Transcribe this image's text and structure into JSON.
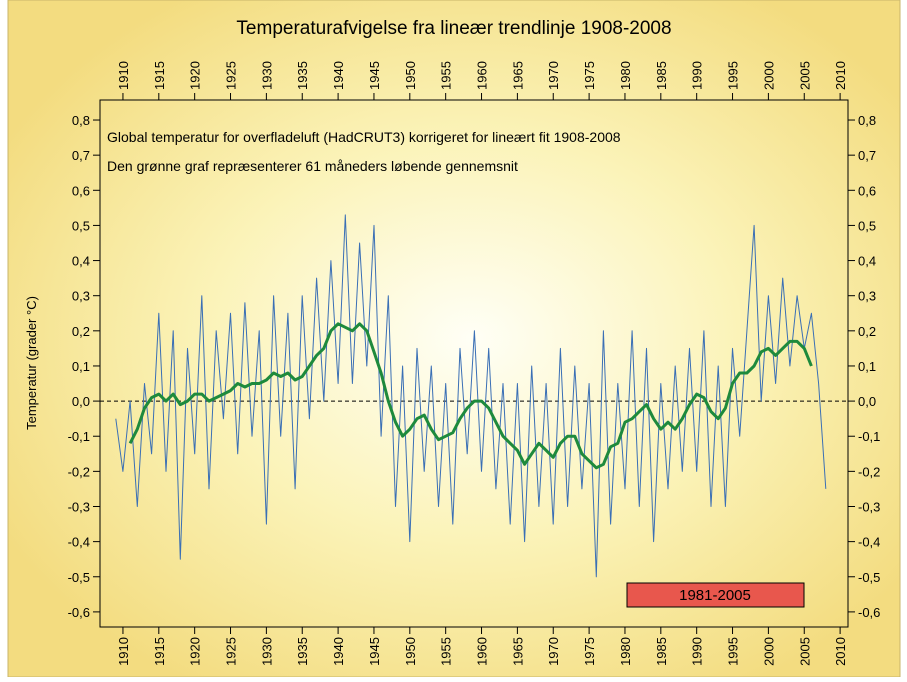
{
  "chart_data": {
    "type": "line",
    "title": "Temperaturafvigelse fra lineær trendlinje 1908-2008",
    "annotations": [
      "Global temperatur for overfladeluft (HadCRUT3) korrigeret for lineært fit 1908-2008",
      "Den grønne graf repræsenterer 61 måneders løbende gennemsnit",
      "1981-2005"
    ],
    "y_label": "Temperatur (grader °C)",
    "xlim": [
      1906.8,
      2011.1
    ],
    "ylim": [
      -0.643,
      0.857
    ],
    "xticks": [
      1910,
      1915,
      1920,
      1925,
      1930,
      1935,
      1940,
      1945,
      1950,
      1955,
      1960,
      1965,
      1970,
      1975,
      1980,
      1985,
      1990,
      1995,
      2000,
      2005,
      2010
    ],
    "yticks": [
      {
        "value": -0.6,
        "label": "-0,6"
      },
      {
        "value": -0.5,
        "label": "-0,5"
      },
      {
        "value": -0.4,
        "label": "-0,4"
      },
      {
        "value": -0.3,
        "label": "-0,3"
      },
      {
        "value": -0.2,
        "label": "-0,2"
      },
      {
        "value": -0.1,
        "label": "-0,1"
      },
      {
        "value": 0,
        "label": "0,0"
      },
      {
        "value": 0.1,
        "label": "0,1"
      },
      {
        "value": 0.2,
        "label": "0,2"
      },
      {
        "value": 0.3,
        "label": "0,3"
      },
      {
        "value": 0.4,
        "label": "0,4"
      },
      {
        "value": 0.5,
        "label": "0,5"
      },
      {
        "value": 0.6,
        "label": "0,6"
      },
      {
        "value": 0.7,
        "label": "0,7"
      },
      {
        "value": 0.8,
        "label": "0,8"
      }
    ],
    "series": [
      {
        "color": "#3a6fb5",
        "width": 1,
        "x": [
          1909,
          1910,
          1911,
          1912,
          1913,
          1914,
          1915,
          1916,
          1917,
          1918,
          1919,
          1920,
          1921,
          1922,
          1923,
          1924,
          1925,
          1926,
          1927,
          1928,
          1929,
          1930,
          1931,
          1932,
          1933,
          1934,
          1935,
          1936,
          1937,
          1938,
          1939,
          1940,
          1941,
          1942,
          1943,
          1944,
          1945,
          1946,
          1947,
          1948,
          1949,
          1950,
          1951,
          1952,
          1953,
          1954,
          1955,
          1956,
          1957,
          1958,
          1959,
          1960,
          1961,
          1962,
          1963,
          1964,
          1965,
          1966,
          1967,
          1968,
          1969,
          1970,
          1971,
          1972,
          1973,
          1974,
          1975,
          1976,
          1977,
          1978,
          1979,
          1980,
          1981,
          1982,
          1983,
          1984,
          1985,
          1986,
          1987,
          1988,
          1989,
          1990,
          1991,
          1992,
          1993,
          1994,
          1995,
          1996,
          1997,
          1998,
          1999,
          2000,
          2001,
          2002,
          2003,
          2004,
          2005,
          2006,
          2007,
          2008
        ],
        "values": [
          -0.05,
          -0.2,
          0.0,
          -0.3,
          0.05,
          -0.15,
          0.25,
          -0.2,
          0.2,
          -0.45,
          0.15,
          -0.15,
          0.3,
          -0.25,
          0.2,
          -0.05,
          0.25,
          -0.15,
          0.28,
          -0.1,
          0.2,
          -0.35,
          0.3,
          -0.1,
          0.25,
          -0.25,
          0.3,
          -0.05,
          0.35,
          0.0,
          0.4,
          0.05,
          0.53,
          0.05,
          0.45,
          0.1,
          0.5,
          -0.1,
          0.3,
          -0.3,
          0.1,
          -0.4,
          0.15,
          -0.2,
          0.1,
          -0.3,
          0.05,
          -0.35,
          0.15,
          -0.15,
          0.2,
          -0.2,
          0.15,
          -0.25,
          0.05,
          -0.35,
          0.05,
          -0.4,
          0.1,
          -0.3,
          0.05,
          -0.35,
          0.15,
          -0.3,
          0.1,
          -0.25,
          0.05,
          -0.5,
          0.2,
          -0.35,
          0.05,
          -0.25,
          0.2,
          -0.3,
          0.15,
          -0.4,
          0.05,
          -0.25,
          0.1,
          -0.2,
          0.15,
          -0.2,
          0.2,
          -0.3,
          0.1,
          -0.3,
          0.15,
          -0.1,
          0.2,
          0.5,
          0.0,
          0.3,
          0.05,
          0.35,
          0.1,
          0.3,
          0.15,
          0.25,
          0.05,
          -0.25
        ]
      },
      {
        "color": "#1e8a3c",
        "width": 3,
        "x": [
          1911,
          1912,
          1913,
          1914,
          1915,
          1916,
          1917,
          1918,
          1919,
          1920,
          1921,
          1922,
          1923,
          1924,
          1925,
          1926,
          1927,
          1928,
          1929,
          1930,
          1931,
          1932,
          1933,
          1934,
          1935,
          1936,
          1937,
          1938,
          1939,
          1940,
          1941,
          1942,
          1943,
          1944,
          1945,
          1946,
          1947,
          1948,
          1949,
          1950,
          1951,
          1952,
          1953,
          1954,
          1955,
          1956,
          1957,
          1958,
          1959,
          1960,
          1961,
          1962,
          1963,
          1964,
          1965,
          1966,
          1967,
          1968,
          1969,
          1970,
          1971,
          1972,
          1973,
          1974,
          1975,
          1976,
          1977,
          1978,
          1979,
          1980,
          1981,
          1982,
          1983,
          1984,
          1985,
          1986,
          1987,
          1988,
          1989,
          1990,
          1991,
          1992,
          1993,
          1994,
          1995,
          1996,
          1997,
          1998,
          1999,
          2000,
          2001,
          2002,
          2003,
          2004,
          2005,
          2006
        ],
        "values": [
          -0.12,
          -0.08,
          -0.02,
          0.01,
          0.02,
          0.0,
          0.02,
          -0.01,
          0.0,
          0.02,
          0.02,
          0.0,
          0.01,
          0.02,
          0.03,
          0.05,
          0.04,
          0.05,
          0.05,
          0.06,
          0.08,
          0.07,
          0.08,
          0.06,
          0.07,
          0.1,
          0.13,
          0.15,
          0.2,
          0.22,
          0.21,
          0.2,
          0.22,
          0.2,
          0.14,
          0.08,
          0.0,
          -0.06,
          -0.1,
          -0.08,
          -0.05,
          -0.04,
          -0.08,
          -0.11,
          -0.1,
          -0.09,
          -0.05,
          -0.02,
          0.0,
          0.0,
          -0.02,
          -0.06,
          -0.1,
          -0.12,
          -0.14,
          -0.18,
          -0.15,
          -0.12,
          -0.14,
          -0.16,
          -0.12,
          -0.1,
          -0.1,
          -0.15,
          -0.17,
          -0.19,
          -0.18,
          -0.13,
          -0.12,
          -0.06,
          -0.05,
          -0.03,
          -0.01,
          -0.05,
          -0.08,
          -0.06,
          -0.08,
          -0.05,
          -0.01,
          0.02,
          0.01,
          -0.03,
          -0.05,
          -0.02,
          0.05,
          0.08,
          0.08,
          0.1,
          0.14,
          0.15,
          0.13,
          0.15,
          0.17,
          0.17,
          0.15,
          0.1
        ]
      }
    ]
  }
}
